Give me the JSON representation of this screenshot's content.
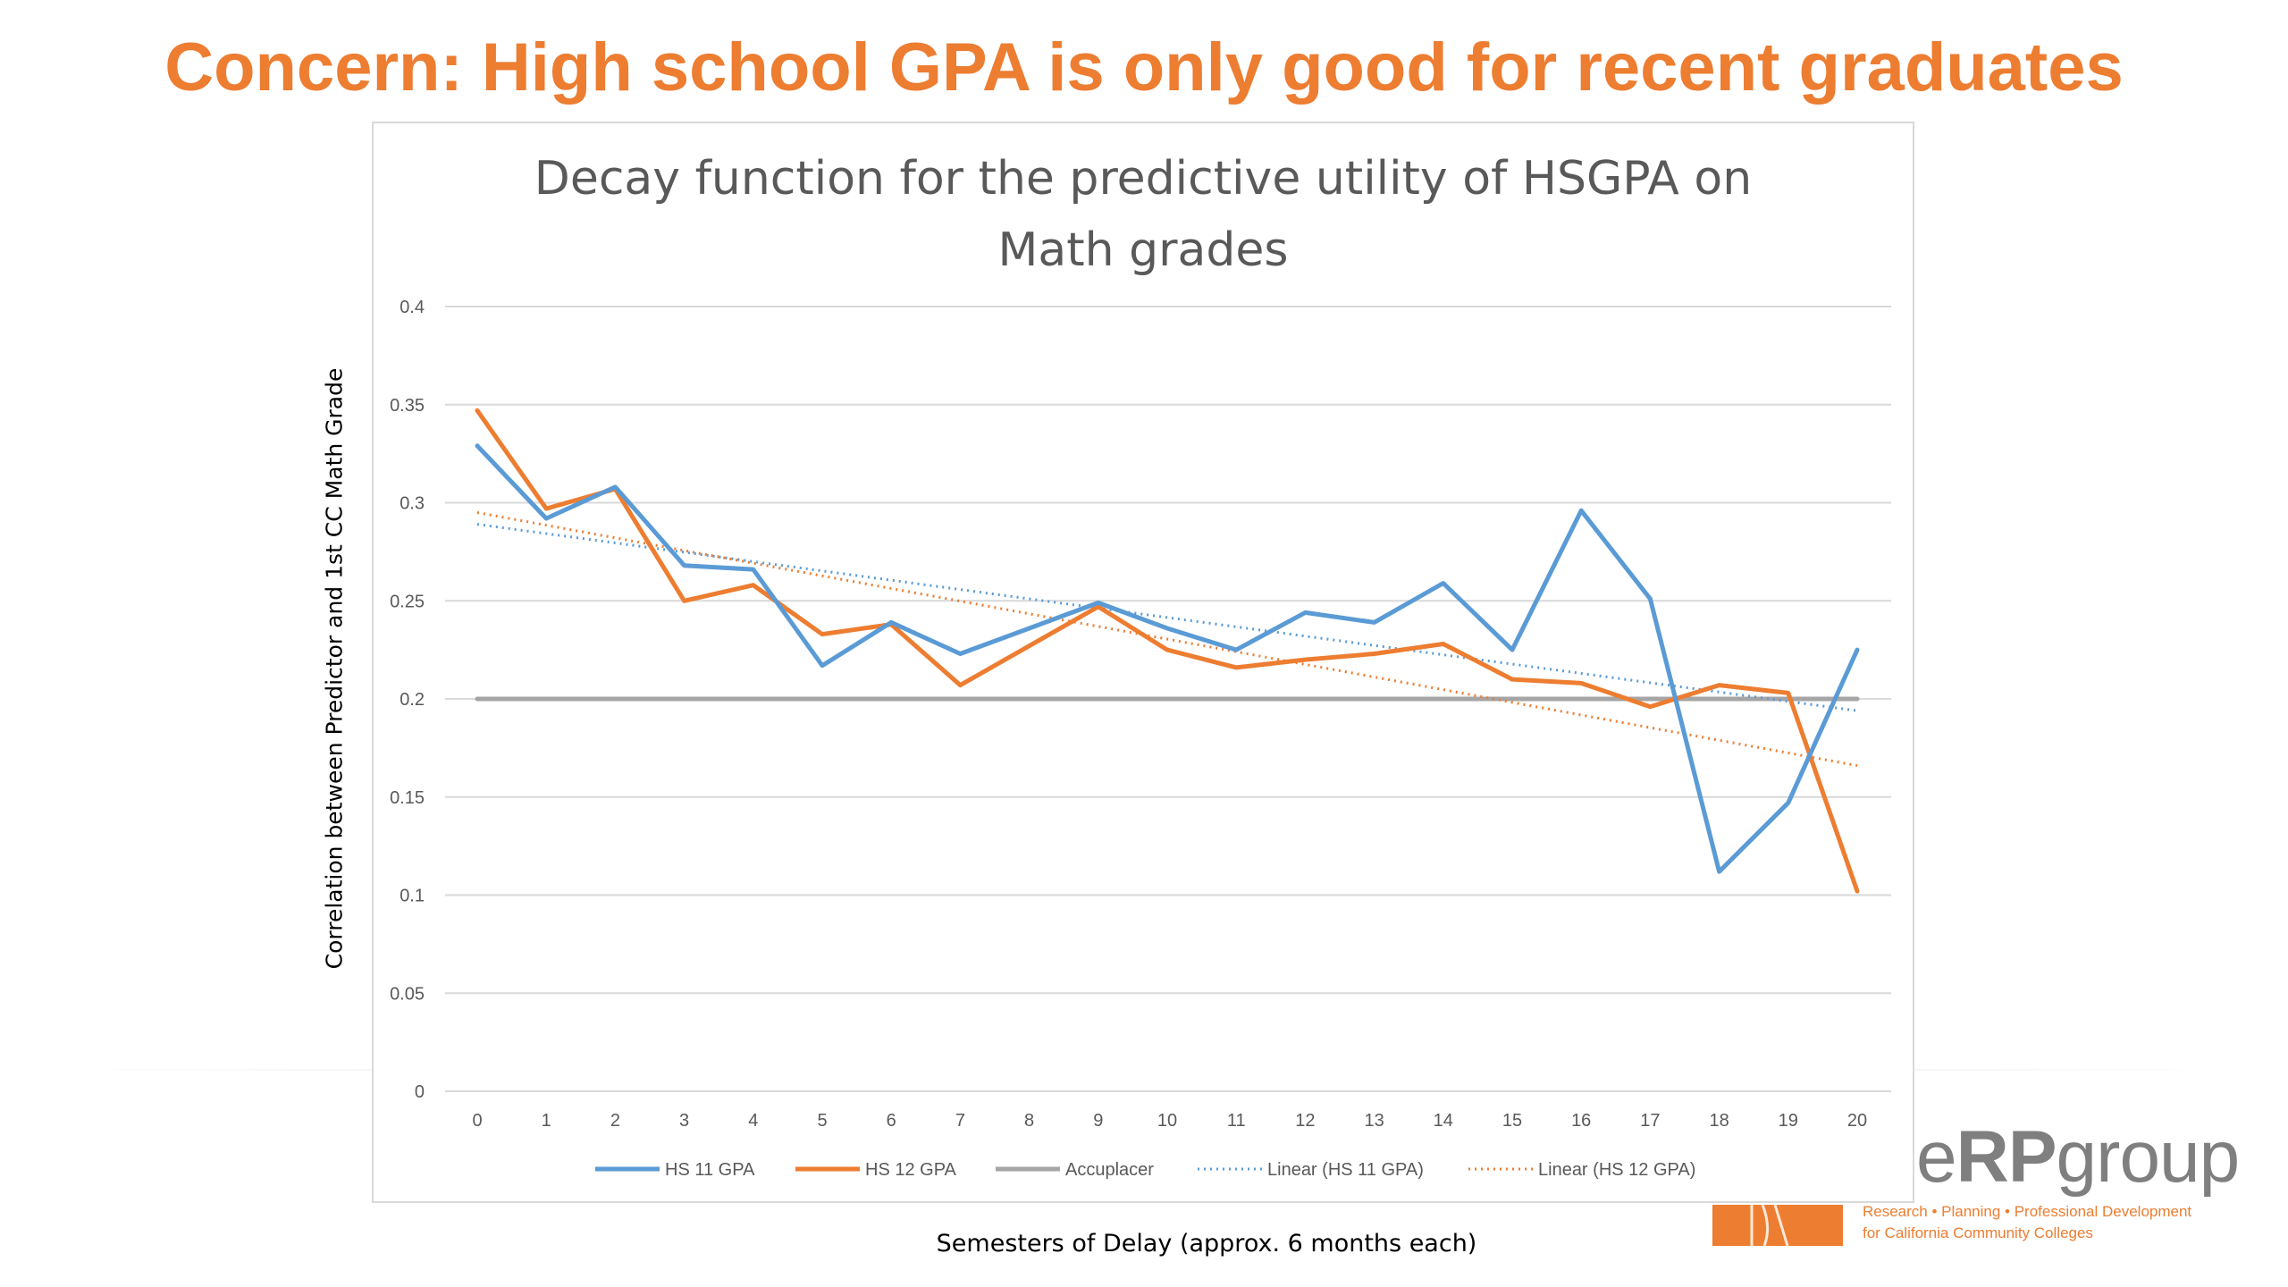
{
  "slide": {
    "title": "Concern: High school GPA is only good for recent graduates"
  },
  "logo": {
    "text_light": "e",
    "text_bold": "RP",
    "text_rest": "group",
    "tagline_1": "Research • Planning • Professional Development",
    "tagline_2": "for California Community Colleges",
    "color": "#ED7D31"
  },
  "chart_data": {
    "type": "line",
    "title_lines": [
      "Decay function for the predictive utility of HSGPA on",
      "Math grades"
    ],
    "xlabel": "Semesters of Delay (approx. 6 months each)",
    "ylabel": "Correlation between Predictor and 1st CC Math Grade",
    "x": [
      0,
      1,
      2,
      3,
      4,
      5,
      6,
      7,
      8,
      9,
      10,
      11,
      12,
      13,
      14,
      15,
      16,
      17,
      18,
      19,
      20
    ],
    "ylim": [
      0,
      0.4
    ],
    "yticks": [
      0,
      0.05,
      0.1,
      0.15,
      0.2,
      0.25,
      0.3,
      0.35,
      0.4
    ],
    "ytick_labels": [
      "0",
      "0.05",
      "0.1",
      "0.15",
      "0.2",
      "0.25",
      "0.3",
      "0.35",
      "0.4"
    ],
    "grid": true,
    "legend_position": "bottom",
    "series": [
      {
        "name": "HS 11 GPA",
        "color": "#5B9BD5",
        "style": "solid",
        "values": [
          0.329,
          0.292,
          0.308,
          0.268,
          0.266,
          0.217,
          0.239,
          0.223,
          0.236,
          0.249,
          0.236,
          0.225,
          0.244,
          0.239,
          0.259,
          0.225,
          0.296,
          0.251,
          0.112,
          0.147,
          0.225
        ]
      },
      {
        "name": "HS 12 GPA",
        "color": "#ED7D31",
        "style": "solid",
        "values": [
          0.347,
          0.297,
          0.307,
          0.25,
          0.258,
          0.233,
          0.238,
          0.207,
          0.227,
          0.247,
          0.225,
          0.216,
          0.22,
          0.223,
          0.228,
          0.21,
          0.208,
          0.196,
          0.207,
          0.203,
          0.102
        ]
      },
      {
        "name": "Accuplacer",
        "color": "#A5A5A5",
        "style": "solid",
        "values": [
          0.2,
          0.2,
          0.2,
          0.2,
          0.2,
          0.2,
          0.2,
          0.2,
          0.2,
          0.2,
          0.2,
          0.2,
          0.2,
          0.2,
          0.2,
          0.2,
          0.2,
          0.2,
          0.2,
          0.2,
          0.2
        ]
      },
      {
        "name": "Linear (HS 11 GPA)",
        "color": "#5B9BD5",
        "style": "dotted",
        "trend": [
          0.289,
          0.194
        ]
      },
      {
        "name": "Linear (HS 12 GPA)",
        "color": "#ED7D31",
        "style": "dotted",
        "trend": [
          0.295,
          0.166
        ]
      }
    ]
  }
}
